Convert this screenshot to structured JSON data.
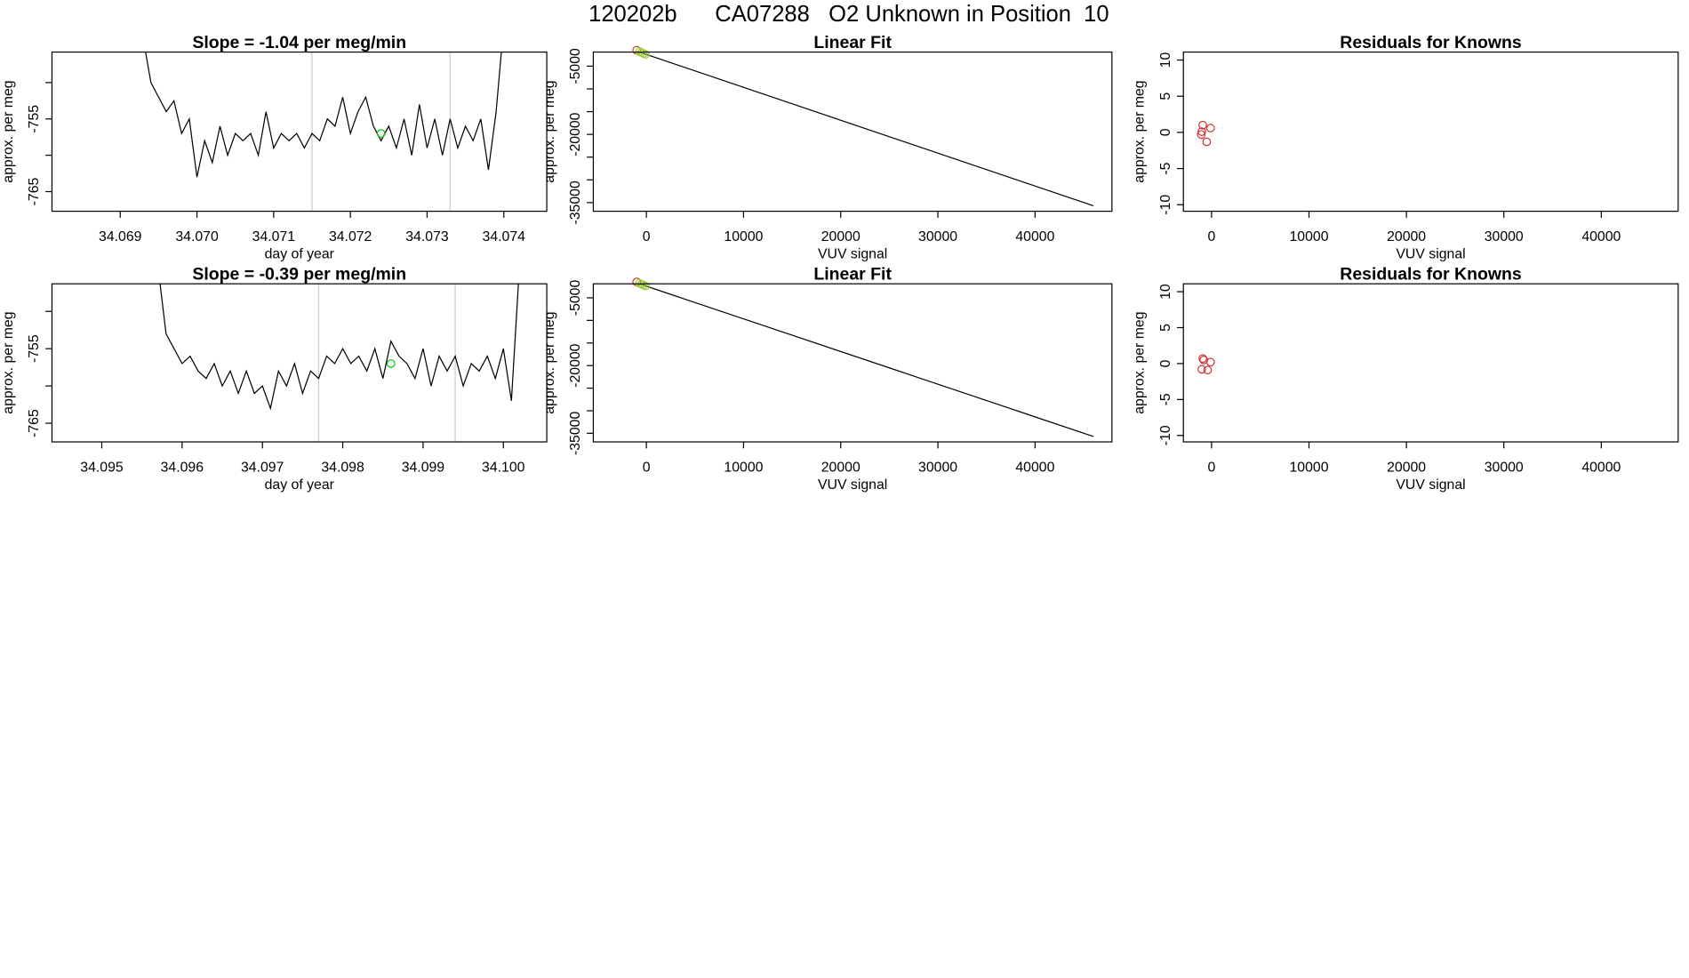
{
  "title": "120202b      CA07288   O2 Unknown in Position  10",
  "chart_data": [
    {
      "type": "line",
      "title": "Slope =  -1.04  per meg/min",
      "xlabel": "day of year",
      "ylabel": "approx. per meg",
      "xlim": [
        34.06811,
        34.07456
      ],
      "ylim": [
        -767.7,
        -745.8
      ],
      "xticks": [
        34.069,
        {
          "value": 34.07,
          "label": "34.070"
        },
        34.071,
        34.072,
        34.073,
        34.074
      ],
      "yticks": [
        -765,
        {
          "value": -760,
          "label": null
        },
        -755,
        {
          "value": -750,
          "label": null
        }
      ],
      "vlines": [
        34.0715,
        34.0733
      ],
      "vline_color": "#cccccc",
      "series": [
        {
          "color": "#000000",
          "x": [
            34.0693,
            34.0694,
            34.0695,
            34.0696,
            34.0697,
            34.0698,
            34.0699,
            34.07,
            34.0701,
            34.0702,
            34.0703,
            34.0704,
            34.0705,
            34.0706,
            34.0707,
            34.0708,
            34.0709,
            34.071,
            34.0711,
            34.0712,
            34.0713,
            34.0714,
            34.0715,
            34.0716,
            34.0717,
            34.0718,
            34.0719,
            34.072,
            34.0721,
            34.0722,
            34.0723,
            34.0724,
            34.0725,
            34.0726,
            34.0727,
            34.0728,
            34.0729,
            34.073,
            34.0731,
            34.0732,
            34.0733,
            34.0734,
            34.0735,
            34.0736,
            34.0737,
            34.0738,
            34.0739,
            34.074
          ],
          "values": [
            -744,
            -750,
            -752,
            -754,
            -752.5,
            -757,
            -755,
            -763,
            -758,
            -761,
            -756,
            -760,
            -757,
            -758,
            -757,
            -760,
            -754,
            -759,
            -757,
            -758,
            -757,
            -759,
            -757,
            -758,
            -755,
            -756,
            -752,
            -757,
            -754,
            -752,
            -756,
            -758,
            -756,
            -759,
            -755,
            -760,
            -753,
            -759,
            -755,
            -760,
            -755,
            -759,
            -756,
            -758,
            -755,
            -762,
            -754,
            -742
          ]
        },
        {
          "type": "scatter",
          "color": "#00cc00",
          "x": [
            34.0724
          ],
          "values": [
            -757
          ]
        }
      ]
    },
    {
      "type": "scatter",
      "title": "Linear Fit",
      "xlabel": "VUV signal",
      "ylabel": "approx. per meg",
      "xlim": [
        -5460,
        47910
      ],
      "ylim": [
        -36900,
        -1900
      ],
      "xticks": [
        0,
        10000,
        20000,
        30000,
        40000
      ],
      "yticks": [
        -35000,
        {
          "value": -30000,
          "label": null
        },
        {
          "value": -25000,
          "label": null
        },
        -20000,
        {
          "value": -15000,
          "label": null
        },
        {
          "value": -10000,
          "label": null
        },
        -5000
      ],
      "series": [
        {
          "type": "line",
          "color": "#000000",
          "x": [
            -1000,
            46000
          ],
          "values": [
            -1700,
            -35700
          ]
        },
        {
          "color": "#cd3333",
          "x": [
            -1000
          ],
          "values": [
            -1500
          ]
        },
        {
          "color": "#9acd32",
          "x": [
            -700,
            -500,
            -300,
            -100
          ],
          "values": [
            -1800,
            -2000,
            -2200,
            -2400
          ]
        }
      ]
    },
    {
      "type": "scatter",
      "title": "Residuals for Knowns",
      "xlabel": "VUV signal",
      "ylabel": "approx. per meg",
      "xlim": [
        -2890,
        47890
      ],
      "ylim": [
        -10.9,
        11.1
      ],
      "xticks": [
        0,
        10000,
        20000,
        30000,
        40000
      ],
      "yticks": [
        -10,
        -5,
        0,
        5,
        10
      ],
      "series": [
        {
          "color": "#cd3333",
          "x": [
            -900,
            -1000,
            -1050,
            -500,
            -100
          ],
          "values": [
            1.0,
            0.1,
            -0.3,
            -1.3,
            0.6
          ]
        }
      ]
    },
    {
      "type": "line",
      "title": "Slope =  -0.39  per meg/min",
      "xlabel": "day of year",
      "ylabel": "approx. per meg",
      "xlim": [
        34.09438,
        34.10054
      ],
      "ylim": [
        -767.5,
        -746.3
      ],
      "xticks": [
        34.095,
        34.096,
        34.097,
        34.098,
        34.099,
        {
          "value": 34.1,
          "label": "34.100"
        }
      ],
      "yticks": [
        -765,
        {
          "value": -760,
          "label": null
        },
        -755,
        {
          "value": -750,
          "label": null
        }
      ],
      "vlines": [
        34.0977,
        34.0994
      ],
      "vline_color": "#cccccc",
      "series": [
        {
          "color": "#000000",
          "x": [
            34.0957,
            34.0958,
            34.0959,
            34.096,
            34.0961,
            34.0962,
            34.0963,
            34.0964,
            34.0965,
            34.0966,
            34.0967,
            34.0968,
            34.0969,
            34.097,
            34.0971,
            34.0972,
            34.0973,
            34.0974,
            34.0975,
            34.0976,
            34.0977,
            34.0978,
            34.0979,
            34.098,
            34.0981,
            34.0982,
            34.0983,
            34.0984,
            34.0985,
            34.0986,
            34.0987,
            34.0988,
            34.0989,
            34.099,
            34.0991,
            34.0992,
            34.0993,
            34.0994,
            34.0995,
            34.0996,
            34.0997,
            34.0998,
            34.0999,
            34.1,
            34.1001,
            34.1002
          ],
          "values": [
            -744,
            -753,
            -755,
            -757,
            -756,
            -758,
            -759,
            -757,
            -760,
            -758,
            -761,
            -758,
            -761,
            -760,
            -763,
            -758,
            -760,
            -757,
            -761,
            -758,
            -759,
            -756,
            -757,
            -755,
            -757,
            -756,
            -758,
            -755,
            -759,
            -754,
            -756,
            -757,
            -759,
            -755,
            -760,
            -756,
            -758,
            -756,
            -760,
            -757,
            -758,
            -756,
            -759,
            -755,
            -762,
            -744
          ]
        },
        {
          "type": "scatter",
          "color": "#00cc00",
          "x": [
            34.0986
          ],
          "values": [
            -757
          ]
        }
      ]
    },
    {
      "type": "scatter",
      "title": "Linear Fit",
      "xlabel": "VUV signal",
      "ylabel": "approx. per meg",
      "xlim": [
        -5460,
        47910
      ],
      "ylim": [
        -36900,
        -1900
      ],
      "xticks": [
        0,
        10000,
        20000,
        30000,
        40000
      ],
      "yticks": [
        -35000,
        {
          "value": -30000,
          "label": null
        },
        {
          "value": -25000,
          "label": null
        },
        -20000,
        {
          "value": -15000,
          "label": null
        },
        {
          "value": -10000,
          "label": null
        },
        -5000
      ],
      "series": [
        {
          "type": "line",
          "color": "#000000",
          "x": [
            -1000,
            46000
          ],
          "values": [
            -1700,
            -35700
          ]
        },
        {
          "color": "#cd3333",
          "x": [
            -1000
          ],
          "values": [
            -1500
          ]
        },
        {
          "color": "#9acd32",
          "x": [
            -700,
            -500,
            -300,
            -100
          ],
          "values": [
            -1800,
            -2000,
            -2200,
            -2400
          ]
        }
      ]
    },
    {
      "type": "scatter",
      "title": "Residuals for Knowns",
      "xlabel": "VUV signal",
      "ylabel": "approx. per meg",
      "xlim": [
        -2890,
        47890
      ],
      "ylim": [
        -10.9,
        11.1
      ],
      "xticks": [
        0,
        10000,
        20000,
        30000,
        40000
      ],
      "yticks": [
        -10,
        -5,
        0,
        5,
        10
      ],
      "series": [
        {
          "color": "#cd3333",
          "x": [
            -900,
            -800,
            -1000,
            -400,
            -100
          ],
          "values": [
            0.7,
            0.5,
            -0.8,
            -0.9,
            0.2
          ]
        }
      ]
    }
  ]
}
